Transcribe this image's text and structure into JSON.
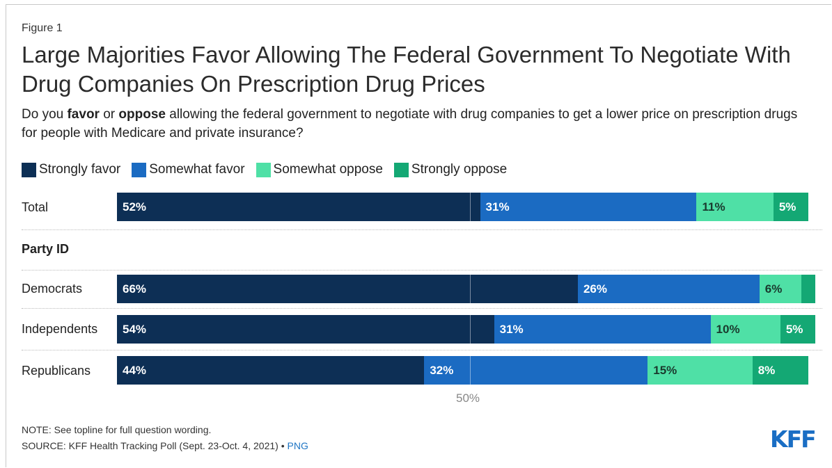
{
  "figure_label": "Figure 1",
  "note": "NOTE: See topline for full question wording.",
  "source": {
    "text": "SOURCE: KFF Health Tracking Poll (Sept. 23-Oct. 4, 2021) •",
    "link": "PNG"
  },
  "logo": "KFF",
  "chart_data": {
    "type": "bar",
    "orientation": "horizontal",
    "stacked": true,
    "title": "Large Majorities Favor Allowing The Federal Government To Negotiate With Drug Companies On Prescription Drug Prices",
    "subtitle_parts": [
      {
        "text": "Do you ",
        "bold": false
      },
      {
        "text": "favor",
        "bold": true
      },
      {
        "text": " or ",
        "bold": false
      },
      {
        "text": "oppose",
        "bold": true
      },
      {
        "text": " allowing the federal government to negotiate with drug companies to get a lower price on prescription drugs for people with Medicare and private insurance?",
        "bold": false
      }
    ],
    "categories": [
      "Total",
      "Democrats",
      "Independents",
      "Republicans"
    ],
    "group_label": "Party ID",
    "series": [
      {
        "name": "Strongly favor",
        "color": "#0d2f55",
        "label_color": "#ffffff",
        "values": [
          52,
          66,
          54,
          44
        ]
      },
      {
        "name": "Somewhat favor",
        "color": "#1b6bc2",
        "label_color": "#ffffff",
        "values": [
          31,
          26,
          31,
          32
        ]
      },
      {
        "name": "Somewhat oppose",
        "color": "#4fe0a6",
        "label_color": "#1a3a2e",
        "values": [
          11,
          6,
          10,
          15
        ]
      },
      {
        "name": "Strongly oppose",
        "color": "#14a874",
        "label_color": "#ffffff",
        "values": [
          5,
          2,
          5,
          8
        ]
      }
    ],
    "data_labels": [
      [
        "52%",
        "31%",
        "11%",
        "5%"
      ],
      [
        "66%",
        "26%",
        "6%",
        ""
      ],
      [
        "54%",
        "31%",
        "10%",
        "5%"
      ],
      [
        "44%",
        "32%",
        "15%",
        "8%"
      ]
    ],
    "reference_line": {
      "value": 50,
      "label": "50%"
    },
    "xlim": [
      0,
      100
    ]
  }
}
